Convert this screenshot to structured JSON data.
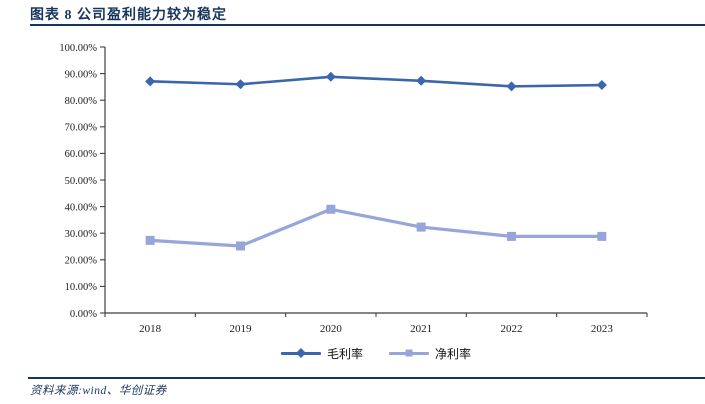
{
  "figure": {
    "title": "图表 8  公司盈利能力较为稳定",
    "source": "资料来源:wind、华创证券"
  },
  "colors": {
    "accent_navy": "#17365d",
    "axis": "#3f3f3f",
    "tick_label": "#1a1a1a",
    "gross_margin_series": "#3a66ad",
    "net_margin_series": "#97a5da"
  },
  "chart_data": {
    "type": "line",
    "title": "图表 8  公司盈利能力较为稳定",
    "categories": [
      "2018",
      "2019",
      "2020",
      "2021",
      "2022",
      "2023"
    ],
    "series": [
      {
        "name": "毛利率",
        "marker": "diamond",
        "color": "#3a66ad",
        "stroke_width": 2.6,
        "values": [
          87.1,
          86.0,
          88.8,
          87.3,
          85.2,
          85.7
        ]
      },
      {
        "name": "净利率",
        "marker": "square",
        "color": "#97a5da",
        "stroke_width": 3.2,
        "values": [
          27.3,
          25.2,
          39.0,
          32.3,
          28.8,
          28.8
        ]
      }
    ],
    "ylim": [
      0,
      100
    ],
    "ytick_step": 10,
    "ytick_labels": [
      "0.00%",
      "10.00%",
      "20.00%",
      "30.00%",
      "40.00%",
      "50.00%",
      "60.00%",
      "70.00%",
      "80.00%",
      "90.00%",
      "100.00%"
    ],
    "grid": false,
    "legend_position": "bottom"
  }
}
